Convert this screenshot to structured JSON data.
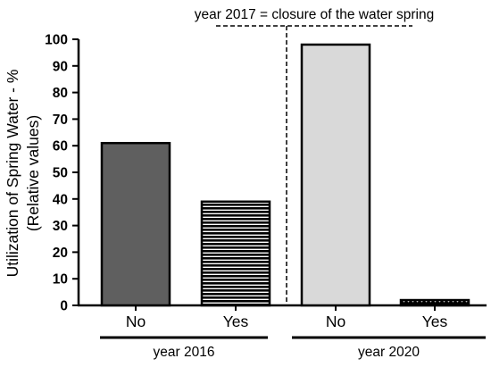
{
  "chart_data": {
    "type": "bar",
    "annotation": "year 2017 = closure of the water spring",
    "ylabel_line1": "Utilization of Spring Water - %",
    "ylabel_line2": "(Relative values)",
    "ylim": [
      0,
      100
    ],
    "yticks": [
      "0",
      "10",
      "20",
      "30",
      "40",
      "50",
      "60",
      "70",
      "80",
      "90",
      "100"
    ],
    "grid": false,
    "groups": [
      {
        "label": "year 2016",
        "categories": [
          "No",
          "Yes"
        ]
      },
      {
        "label": "year 2020",
        "categories": [
          "No",
          "Yes"
        ]
      }
    ],
    "bars": [
      {
        "group": "year 2016",
        "category": "No",
        "value": 61,
        "fill": "#5f5f5f",
        "pattern": "solid"
      },
      {
        "group": "year 2016",
        "category": "Yes",
        "value": 39,
        "fill": "#000000",
        "pattern": "horizontal-stripes"
      },
      {
        "group": "year 2020",
        "category": "No",
        "value": 98,
        "fill": "#d9d9d9",
        "pattern": "solid"
      },
      {
        "group": "year 2020",
        "category": "Yes",
        "value": 2,
        "fill": "#000000",
        "pattern": "dotted"
      }
    ]
  }
}
